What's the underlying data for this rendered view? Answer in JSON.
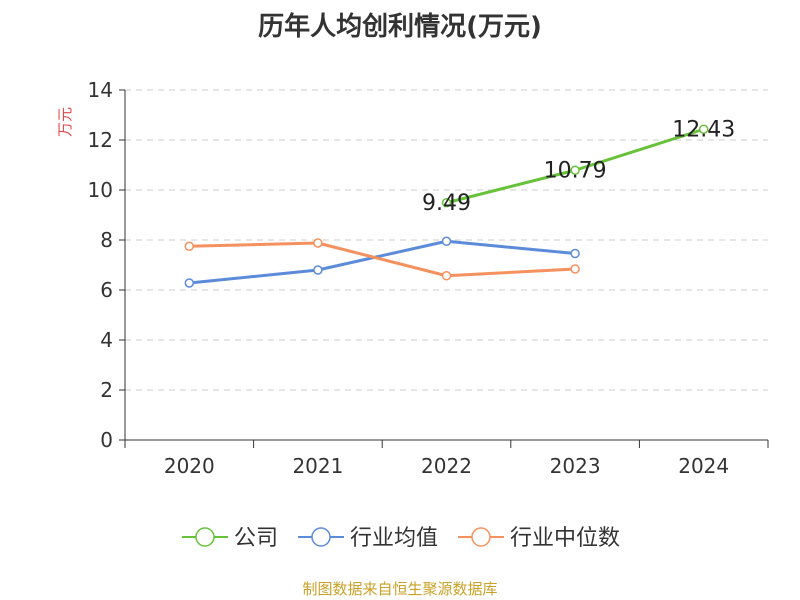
{
  "chart_data": {
    "type": "line",
    "title": "历年人均创利情况(万元)",
    "xlabel": "",
    "ylabel": "万元",
    "categories": [
      "2020",
      "2021",
      "2022",
      "2023",
      "2024"
    ],
    "ylim": [
      0,
      14
    ],
    "yticks": [
      0,
      2,
      4,
      6,
      8,
      10,
      12,
      14
    ],
    "grid": "horizontal-dashed",
    "legend_position": "bottom",
    "series": [
      {
        "name": "公司",
        "color": "#67c23a",
        "values": [
          null,
          null,
          9.49,
          10.79,
          12.43
        ],
        "labels": [
          null,
          null,
          "9.49",
          "10.79",
          "12.43"
        ]
      },
      {
        "name": "行业均值",
        "color": "#5b8bd9",
        "values": [
          6.28,
          6.8,
          7.95,
          7.46,
          null
        ],
        "labels": []
      },
      {
        "name": "行业中位数",
        "color": "#f5915e",
        "values": [
          7.75,
          7.88,
          6.57,
          6.84,
          null
        ],
        "labels": []
      }
    ]
  },
  "source_text": "制图数据来自恒生聚源数据库"
}
